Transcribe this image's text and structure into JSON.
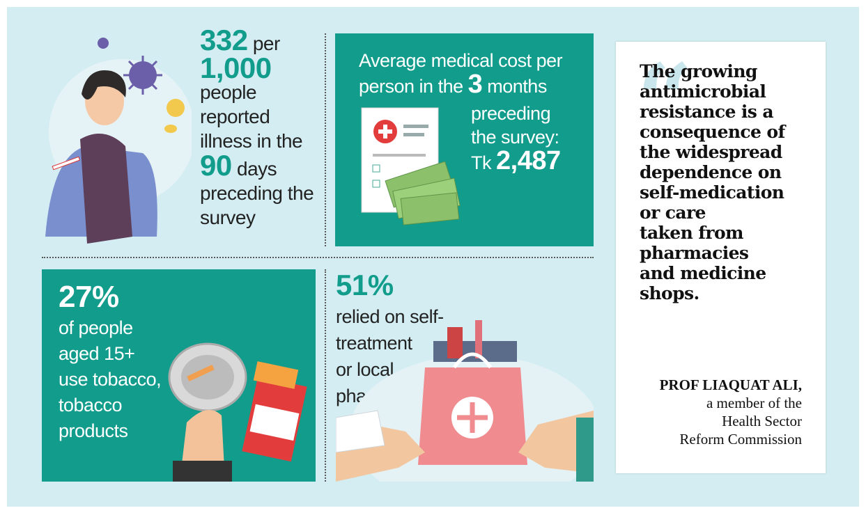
{
  "illness": {
    "number": "332",
    "per": "per",
    "thousand": "1,000",
    "line1": "people",
    "line2": "reported",
    "line3": "illness in the",
    "days_number": "90",
    "days_word": "days",
    "line4": "preceding the",
    "line5": "survey"
  },
  "cost": {
    "line1": "Average medical cost per",
    "line2": "person in the",
    "months_number": "3",
    "months_word": "months",
    "line3": "preceding",
    "line4": "the survey:",
    "currency": "Tk",
    "amount": "2,487"
  },
  "tobacco": {
    "percent": "27%",
    "line1": "of people",
    "line2": "aged 15+",
    "line3": "use tobacco,",
    "line4": "tobacco",
    "line5": "products"
  },
  "self_treatment": {
    "percent": "51%",
    "line1": "relied on self-",
    "line2": "treatment",
    "line3": "or local",
    "line4": "pharmacies"
  },
  "quote": {
    "lines": [
      "The growing",
      "antimicrobial",
      "resistance is a",
      "consequence of",
      "the widespread",
      "dependence on",
      "self-medication",
      "or care",
      "taken from",
      "pharmacies",
      "and medicine",
      "shops."
    ],
    "name": "PROF LIAQUAT ALI,",
    "role_line1": "a member of the",
    "role_line2": "Health Sector",
    "role_line3": "Reform Commission"
  },
  "colors": {
    "teal": "#119c8c",
    "background": "#d3edf2",
    "quote_mark": "#c9e6ec"
  },
  "icons": [
    "sick-person-illustration",
    "virus-icon",
    "pill-icon",
    "medical-report-icon",
    "money-icon",
    "ashtray-icon",
    "cigarette-pack-icon",
    "pharmacy-bag-icon",
    "hands-icon",
    "quote-mark-icon"
  ]
}
